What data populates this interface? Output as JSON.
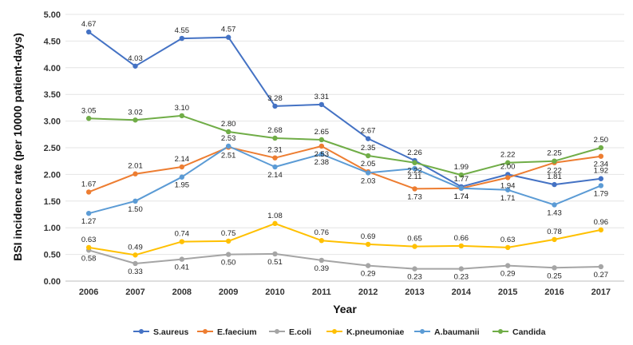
{
  "chart_data": {
    "type": "line",
    "title": "",
    "xlabel": "Year",
    "ylabel": "BSI incidence rate (per 10000 patient-days)",
    "x": [
      "2006",
      "2007",
      "2008",
      "2009",
      "2010",
      "2011",
      "2012",
      "2013",
      "2014",
      "2015",
      "2016",
      "2017"
    ],
    "ylim": [
      0,
      5
    ],
    "yticks": [
      "0.00",
      "0.50",
      "1.00",
      "1.50",
      "2.00",
      "2.50",
      "3.00",
      "3.50",
      "4.00",
      "4.50",
      "5.00"
    ],
    "grid": true,
    "legend_position": "bottom",
    "series": [
      {
        "name": "S.aureus",
        "color": "#4472C4",
        "values": [
          4.67,
          4.03,
          4.55,
          4.57,
          3.28,
          3.31,
          2.67,
          2.26,
          1.77,
          2.0,
          1.81,
          1.92
        ]
      },
      {
        "name": "E.faecium",
        "color": "#ED7D31",
        "values": [
          1.67,
          2.01,
          2.14,
          2.51,
          2.31,
          2.53,
          2.05,
          1.73,
          1.74,
          1.94,
          2.22,
          2.34
        ]
      },
      {
        "name": "E.coli",
        "color": "#A5A5A5",
        "values": [
          0.58,
          0.33,
          0.41,
          0.5,
          0.51,
          0.39,
          0.29,
          0.23,
          0.23,
          0.29,
          0.25,
          0.27
        ]
      },
      {
        "name": "K.pneumoniae",
        "color": "#FFC000",
        "values": [
          0.63,
          0.49,
          0.74,
          0.75,
          1.08,
          0.76,
          0.69,
          0.65,
          0.66,
          0.63,
          0.78,
          0.96
        ]
      },
      {
        "name": "A.baumanii",
        "color": "#5B9BD5",
        "values": [
          1.27,
          1.5,
          1.95,
          2.53,
          2.14,
          2.38,
          2.03,
          2.11,
          1.74,
          1.71,
          1.43,
          1.79
        ]
      },
      {
        "name": "Candida",
        "color": "#70AD47",
        "values": [
          3.05,
          3.02,
          3.1,
          2.8,
          2.68,
          2.65,
          2.35,
          2.22,
          1.99,
          2.22,
          2.25,
          2.5
        ]
      }
    ]
  }
}
